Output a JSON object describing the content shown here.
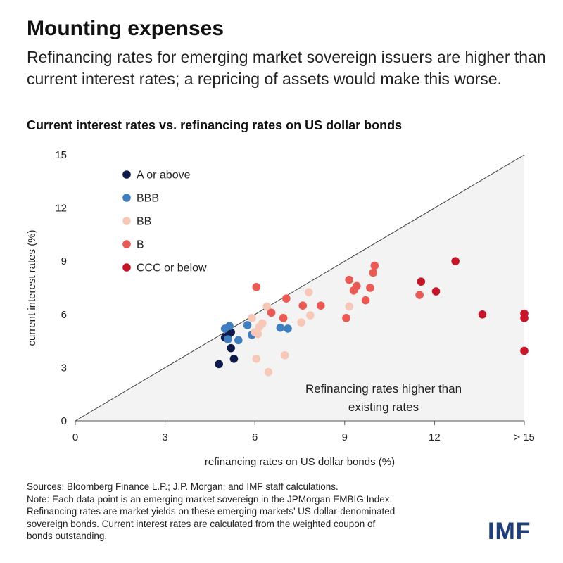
{
  "header": {
    "title": "Mounting expenses",
    "subtitle": "Refinancing rates for emerging market sovereign issuers are higher than current interest rates; a repricing of assets would make this worse."
  },
  "chart_data": {
    "type": "scatter",
    "title": "Current interest rates vs. refinancing rates on US dollar bonds",
    "xlabel": "refinancing rates on US dollar bonds (%)",
    "ylabel": "current interest rates (%)",
    "xlim": [
      0,
      15
    ],
    "ylim": [
      0,
      15
    ],
    "xticks": [
      "0",
      "3",
      "6",
      "9",
      "12",
      "> 15"
    ],
    "yticks": [
      "0",
      "3",
      "6",
      "9",
      "12",
      "15"
    ],
    "grid": false,
    "legend_position": "top-left",
    "reference_line": "y = x",
    "annotation": [
      "Refinancing rates higher than",
      "existing rates"
    ],
    "series": [
      {
        "name": "A or above",
        "color": "#0d1a4a",
        "points": [
          [
            4.8,
            3.2
          ],
          [
            5.0,
            4.7
          ],
          [
            5.1,
            4.8
          ],
          [
            5.2,
            5.0
          ],
          [
            5.2,
            4.1
          ],
          [
            5.3,
            3.5
          ]
        ]
      },
      {
        "name": "BBB",
        "color": "#3f7fc0",
        "points": [
          [
            5.0,
            5.2
          ],
          [
            5.1,
            4.6
          ],
          [
            5.15,
            5.35
          ],
          [
            5.45,
            4.55
          ],
          [
            5.75,
            5.4
          ],
          [
            5.9,
            4.85
          ],
          [
            6.05,
            4.95
          ],
          [
            6.85,
            5.25
          ],
          [
            7.1,
            5.2
          ]
        ]
      },
      {
        "name": "BB",
        "color": "#f7c7b7",
        "points": [
          [
            5.9,
            5.8
          ],
          [
            6.0,
            5.0
          ],
          [
            6.05,
            3.5
          ],
          [
            6.1,
            4.9
          ],
          [
            6.15,
            5.3
          ],
          [
            6.25,
            5.5
          ],
          [
            6.4,
            6.45
          ],
          [
            6.45,
            2.75
          ],
          [
            7.0,
            3.7
          ],
          [
            7.55,
            5.55
          ],
          [
            7.8,
            7.25
          ],
          [
            7.85,
            5.95
          ],
          [
            9.15,
            6.45
          ]
        ]
      },
      {
        "name": "B",
        "color": "#ea5a55",
        "points": [
          [
            6.05,
            7.55
          ],
          [
            6.55,
            6.1
          ],
          [
            6.95,
            5.8
          ],
          [
            7.05,
            6.9
          ],
          [
            7.6,
            6.5
          ],
          [
            8.2,
            6.5
          ],
          [
            9.05,
            5.8
          ],
          [
            9.15,
            7.95
          ],
          [
            9.3,
            7.35
          ],
          [
            9.4,
            7.6
          ],
          [
            9.7,
            6.8
          ],
          [
            9.85,
            7.5
          ],
          [
            9.95,
            8.35
          ],
          [
            10.0,
            8.75
          ],
          [
            11.5,
            7.1
          ]
        ]
      },
      {
        "name": "CCC or below",
        "color": "#c6162a",
        "points": [
          [
            11.55,
            7.85
          ],
          [
            12.05,
            7.3
          ],
          [
            12.7,
            9.0
          ],
          [
            13.6,
            6.0
          ],
          [
            15.0,
            6.05
          ],
          [
            15.0,
            5.8
          ],
          [
            15.0,
            3.95
          ]
        ]
      }
    ]
  },
  "footer": {
    "notes": [
      "Sources: Bloomberg Finance L.P.; J.P. Morgan; and IMF staff calculations.",
      "Note: Each data point is an emerging market sovereign in the JPMorgan EMBIG Index.",
      "Refinancing rates are market yields on these emerging markets’ US dollar-denominated",
      "sovereign bonds. Current interest rates are calculated from the weighted coupon of",
      "bonds outstanding."
    ],
    "logo": "IMF"
  }
}
